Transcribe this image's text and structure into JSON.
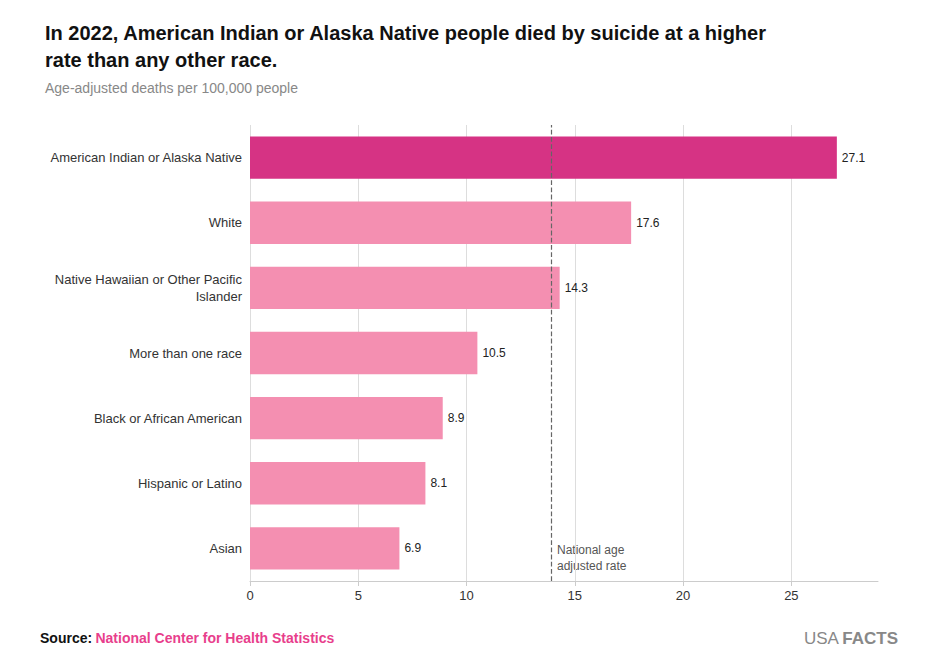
{
  "chart_data": {
    "type": "bar",
    "orientation": "horizontal",
    "title": "In 2022, American Indian or Alaska Native people died by suicide at a higher\nrate than any other race.",
    "subtitle": "Age-adjusted deaths per 100,000 people",
    "categories": [
      "Asian",
      "Hispanic or Latino",
      "Black or African American",
      "More than one race",
      "Native Hawaiian or Other Pacific\nIslander",
      "White",
      "American Indian or Alaska Native"
    ],
    "values": [
      6.9,
      8.1,
      8.9,
      10.5,
      14.3,
      17.6,
      27.1
    ],
    "colors": [
      "#f48fb1",
      "#f48fb1",
      "#f48fb1",
      "#f48fb1",
      "#f48fb1",
      "#f48fb1",
      "#d63384"
    ],
    "xlim": [
      0,
      29
    ],
    "xticks": [
      0,
      5,
      10,
      15,
      20,
      25
    ],
    "grid": true,
    "data_labels": true,
    "annotations": [
      {
        "type": "vline",
        "x": 13.9,
        "text": "National age\nadjusted rate",
        "line_style": "dashed"
      }
    ],
    "source": {
      "label": "Source:",
      "text": "National Center for Health Statistics",
      "color": "#e83e8c"
    },
    "watermark": [
      "USA",
      "FACTS"
    ]
  }
}
